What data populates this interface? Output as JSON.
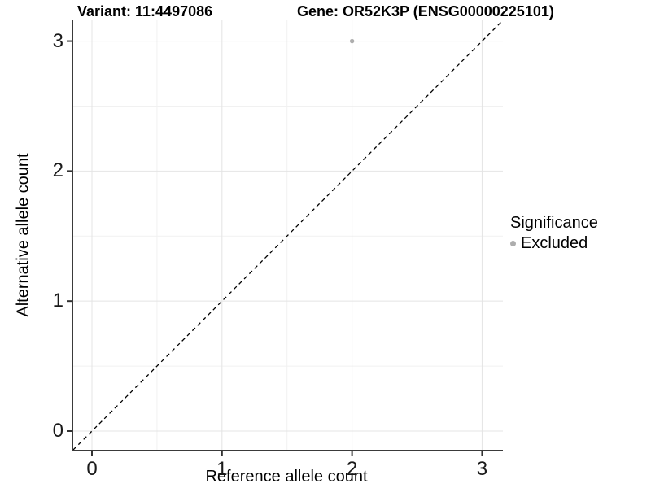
{
  "header": {
    "variant_title": "Variant: 11:4497086",
    "gene_title": "Gene: OR52K3P (ENSG00000225101)"
  },
  "axes": {
    "x_label": "Reference allele count",
    "y_label": "Alternative allele count",
    "x_ticks": [
      0,
      1,
      2,
      3
    ],
    "y_ticks": [
      0,
      1,
      2,
      3
    ],
    "x_minor_ticks": [
      0.5,
      1.5,
      2.5
    ],
    "y_minor_ticks": [
      0.5,
      1.5,
      2.5
    ]
  },
  "legend": {
    "title": "Significance",
    "items": [
      {
        "label": "Excluded",
        "color": "#adadad"
      }
    ]
  },
  "colors": {
    "major_grid": "#e4e4e4",
    "minor_grid": "#f1f1f1",
    "axis_line": "#3a3a3a",
    "tick_mark": "#333333",
    "diagonal": "#000000"
  },
  "chart_data": {
    "type": "scatter",
    "title": "Variant: 11:4497086   Gene: OR52K3P (ENSG00000225101)",
    "xlabel": "Reference allele count",
    "ylabel": "Alternative allele count",
    "xlim": [
      -0.144,
      3.16
    ],
    "ylim": [
      -0.144,
      3.16
    ],
    "x_tick_values": [
      0,
      1,
      2,
      3
    ],
    "y_tick_values": [
      0,
      1,
      2,
      3
    ],
    "grid": "major+minor",
    "legend_title": "Significance",
    "legend_position": "right-center",
    "series": [
      {
        "name": "Excluded",
        "color": "#adadad",
        "points": [
          {
            "x": 2,
            "y": 3
          }
        ]
      }
    ],
    "reference_line": {
      "kind": "identity y=x",
      "style": "dashed",
      "color": "#000000"
    }
  }
}
